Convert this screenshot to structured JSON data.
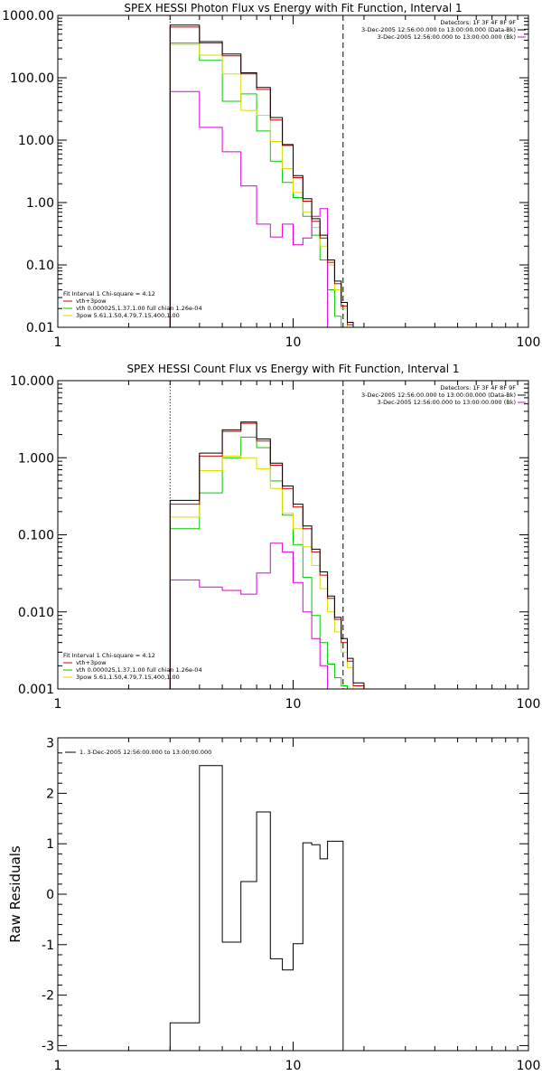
{
  "chart_data": [
    {
      "type": "line",
      "title": "SPEX HESSI Photon Flux vs Energy with Fit Function, Interval 1",
      "xscale": "log",
      "yscale": "log",
      "xlim": [
        1,
        100
      ],
      "ylim": [
        0.01,
        1000
      ],
      "x_ticks": [
        "1",
        "10",
        "100"
      ],
      "y_ticks": [
        "0.01",
        "0.10",
        "1.00",
        "10.00",
        "100.00",
        "1000.00"
      ],
      "markers": {
        "dotted": 3,
        "dashed": 16.3
      },
      "info_top_right": [
        "Detectors: 1F 3F 4F 8F 9F",
        "3-Dec-2005 12:56:00.000 to 13:00:00.000 (Data-Bk)",
        "3-Dec-2005 12:56:00.000 to 13:00:00.000 (Bk)"
      ],
      "legend_lines": [
        "Fit Interval 1    Chi-square = 4.12",
        "vth+3pow",
        "vth 0.000025,1.37,1.00  full chian 1.26e-04",
        "3pow 5.61,1.50,4.79,7.15,400,1.00"
      ],
      "edges": [
        3,
        4,
        5,
        6,
        7,
        8,
        9,
        10,
        11,
        12,
        13,
        14,
        15,
        16,
        17,
        18,
        20
      ],
      "series": [
        {
          "color": "#000000",
          "values": [
            700,
            380,
            240,
            120,
            70,
            23,
            8.5,
            2.7,
            1.15,
            0.55,
            0.3,
            0.12,
            0.055,
            0.025,
            0.012,
            0.009
          ]
        },
        {
          "color": "#cc0000",
          "values": [
            650,
            360,
            225,
            115,
            65,
            21,
            8.2,
            2.5,
            1.05,
            0.5,
            0.27,
            0.11,
            0.05,
            0.022,
            0.011,
            0.008
          ]
        },
        {
          "color": "#00cc00",
          "values": [
            360,
            190,
            42,
            55,
            14,
            4.6,
            2.1,
            1.2,
            0.6,
            0.3,
            0.12,
            0.04,
            0.015,
            0.009,
            0.008,
            0.008
          ]
        },
        {
          "color": "#dddd00",
          "values": [
            340,
            230,
            115,
            30,
            25,
            9.5,
            3.5,
            1.45,
            0.7,
            0.4,
            0.2,
            0.1,
            0.04,
            0.02,
            0.01,
            0.008
          ]
        },
        {
          "color": "#dd00dd",
          "values": [
            60,
            16,
            6.5,
            1.85,
            0.45,
            0.28,
            0.45,
            0.21,
            0.27,
            0.6,
            0.8
          ]
        }
      ]
    },
    {
      "type": "line",
      "title": "SPEX HESSI Count Flux vs Energy with Fit Function, Interval 1",
      "xscale": "log",
      "yscale": "log",
      "xlim": [
        1,
        100
      ],
      "ylim": [
        0.001,
        10
      ],
      "x_ticks": [
        "1",
        "10",
        "100"
      ],
      "y_ticks": [
        "0.001",
        "0.010",
        "0.100",
        "1.000",
        "10.000"
      ],
      "markers": {
        "dotted": 3,
        "dashed": 16.3
      },
      "info_top_right": [
        "Detectors: 1F 3F 4F 8F 9F",
        "3-Dec-2005 12:56:00.000 to 13:00:00.000 (Data-Bk)",
        "3-Dec-2005 12:56:00.000 to 13:00:00.000 (Bk)"
      ],
      "legend_lines": [
        "Fit Interval 1    Chi-square = 4.12",
        "vth+3pow",
        "vth 0.000025,1.37,1.00  full chian 1.26e-04",
        "3pow 5.61,1.50,4.79,7.15,400,1.00"
      ],
      "edges": [
        3,
        4,
        5,
        6,
        7,
        8,
        9,
        10,
        11,
        12,
        13,
        14,
        15,
        16,
        17,
        18,
        20
      ],
      "series": [
        {
          "color": "#000000",
          "values": [
            0.28,
            1.15,
            2.3,
            2.9,
            1.75,
            0.85,
            0.43,
            0.25,
            0.13,
            0.065,
            0.033,
            0.016,
            0.0085,
            0.0045,
            0.0025,
            0.0012
          ]
        },
        {
          "color": "#cc0000",
          "values": [
            0.25,
            1.05,
            2.2,
            2.8,
            1.65,
            0.8,
            0.4,
            0.23,
            0.12,
            0.06,
            0.03,
            0.015,
            0.008,
            0.004,
            0.0023,
            0.0011
          ]
        },
        {
          "color": "#00cc00",
          "values": [
            0.12,
            0.35,
            1.0,
            1.85,
            1.35,
            0.5,
            0.18,
            0.075,
            0.028,
            0.009,
            0.004,
            0.0021,
            0.0014,
            0.0011,
            0.0009,
            0.0009
          ]
        },
        {
          "color": "#dddd00",
          "values": [
            0.17,
            0.68,
            1.05,
            1.0,
            0.72,
            0.4,
            0.19,
            0.12,
            0.07,
            0.04,
            0.02,
            0.01,
            0.0055,
            0.003,
            0.0019,
            0.001
          ]
        },
        {
          "color": "#dd00dd",
          "values": [
            0.026,
            0.021,
            0.019,
            0.017,
            0.032,
            0.078,
            0.06,
            0.024,
            0.01,
            0.0045,
            0.002
          ]
        }
      ]
    },
    {
      "type": "line",
      "ylabel": "Raw Residuals",
      "xscale": "log",
      "xlim": [
        1,
        100
      ],
      "ylim": [
        -3.1,
        3.1
      ],
      "x_ticks": [
        "1",
        "10",
        "100"
      ],
      "y_ticks": [
        "-3",
        "-2",
        "-1",
        "0",
        "1",
        "2",
        "3"
      ],
      "legend_lines": [
        "1.  3-Dec-2005 12:56:00.000 to 13:00:00.000"
      ],
      "edges": [
        3,
        4,
        5,
        6,
        7,
        8,
        9,
        10,
        11,
        12,
        13,
        14,
        15,
        16.3
      ],
      "series": [
        {
          "color": "#000000",
          "values": [
            -2.55,
            2.55,
            -0.95,
            0.25,
            1.63,
            -1.28,
            -1.5,
            -0.98,
            1.02,
            0.98,
            0.7,
            1.05,
            1.05
          ]
        }
      ]
    }
  ]
}
